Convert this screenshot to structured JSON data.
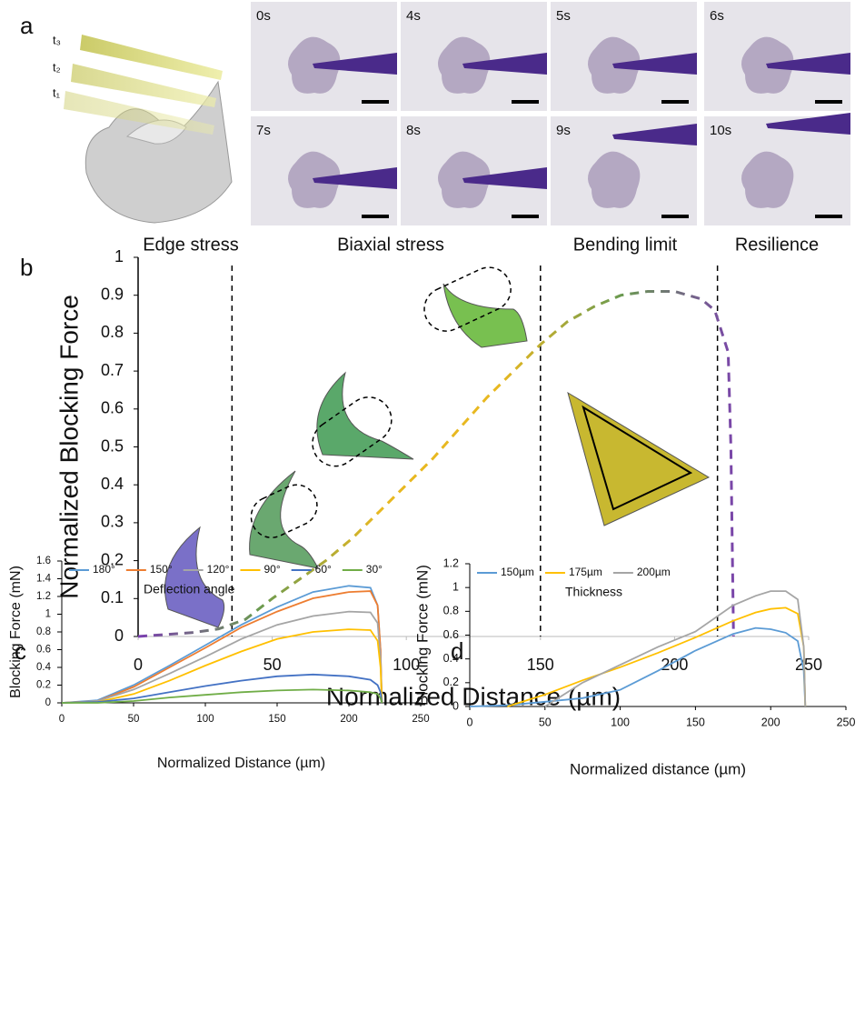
{
  "panels": [
    "a",
    "b",
    "c",
    "d"
  ],
  "panel_a": {
    "tips": [
      "t₃",
      "t₂",
      "t₁"
    ],
    "times": [
      "0s",
      "4s",
      "5s",
      "6s",
      "7s",
      "8s",
      "9s",
      "10s"
    ]
  },
  "chart_data": [
    {
      "type": "line",
      "xlabel": "Normalized Distance (µm)",
      "ylabel": "Normalized Blocking Force",
      "annotations": [
        "Edge stress",
        "Biaxial stress",
        "Bending limit",
        "Resilience"
      ],
      "dividers": [
        35,
        150,
        216
      ],
      "x": [
        0,
        10,
        20,
        30,
        40,
        50,
        60,
        70,
        80,
        90,
        100,
        110,
        120,
        130,
        140,
        150,
        160,
        170,
        180,
        190,
        200,
        210,
        215,
        220,
        221,
        222
      ],
      "values": [
        0,
        0.005,
        0.01,
        0.02,
        0.045,
        0.1,
        0.15,
        0.2,
        0.26,
        0.33,
        0.4,
        0.47,
        0.55,
        0.63,
        0.7,
        0.77,
        0.83,
        0.87,
        0.9,
        0.91,
        0.91,
        0.89,
        0.86,
        0.75,
        0.5,
        0
      ],
      "colors": [
        "#7b3fb0",
        "#6a9a50",
        "#e8b820",
        "#e8b820",
        "#6a9a50",
        "#7b3fb0"
      ],
      "dashed": true,
      "xlim": [
        0,
        250
      ],
      "ylim": [
        0,
        1
      ],
      "xticks": [
        0,
        50,
        100,
        150,
        200,
        250
      ],
      "yticks": [
        0,
        0.1,
        0.2,
        0.3,
        0.4,
        0.5,
        0.6,
        0.7,
        0.8,
        0.9,
        1
      ]
    },
    {
      "type": "line",
      "xlabel": "Normalized Distance (µm)",
      "ylabel": "Blocking Force (mN)",
      "legend": "top-left",
      "legend_title": "Deflection angle",
      "x": [
        0,
        25,
        50,
        75,
        100,
        125,
        150,
        175,
        200,
        215,
        220,
        222,
        223
      ],
      "series": [
        {
          "name": "180°",
          "color": "#5b9bd5",
          "values": [
            0,
            0.03,
            0.2,
            0.42,
            0.65,
            0.88,
            1.08,
            1.25,
            1.32,
            1.3,
            1.1,
            0.6,
            0
          ]
        },
        {
          "name": "150°",
          "color": "#ed7d31",
          "values": [
            0,
            0.02,
            0.18,
            0.4,
            0.62,
            0.85,
            1.03,
            1.18,
            1.25,
            1.26,
            1.1,
            0.6,
            0
          ]
        },
        {
          "name": "120°",
          "color": "#a5a5a5",
          "values": [
            0,
            0.02,
            0.15,
            0.33,
            0.52,
            0.72,
            0.88,
            0.98,
            1.03,
            1.02,
            0.9,
            0.5,
            0
          ]
        },
        {
          "name": "90°",
          "color": "#ffc000",
          "values": [
            0,
            0.01,
            0.1,
            0.25,
            0.42,
            0.58,
            0.72,
            0.8,
            0.83,
            0.82,
            0.7,
            0.4,
            0
          ]
        },
        {
          "name": "60°",
          "color": "#4472c4",
          "values": [
            0,
            0.01,
            0.05,
            0.12,
            0.19,
            0.25,
            0.3,
            0.32,
            0.3,
            0.26,
            0.2,
            0.12,
            0
          ]
        },
        {
          "name": "30°",
          "color": "#70ad47",
          "values": [
            0,
            0,
            0.02,
            0.06,
            0.09,
            0.12,
            0.14,
            0.15,
            0.14,
            0.12,
            0.1,
            0.05,
            0
          ]
        }
      ],
      "xlim": [
        0,
        250
      ],
      "ylim": [
        0,
        1.6
      ],
      "xticks": [
        0,
        50,
        100,
        150,
        200,
        250
      ],
      "yticks": [
        0,
        0.2,
        0.4,
        0.6,
        0.8,
        1,
        1.2,
        1.4,
        1.6
      ]
    },
    {
      "type": "line",
      "xlabel": "Normalized distance (µm)",
      "ylabel": "Blocking Force (mN)",
      "legend": "top-left",
      "legend_title": "Thickness",
      "x": [
        0,
        25,
        50,
        75,
        100,
        125,
        150,
        175,
        190,
        200,
        210,
        218,
        222,
        223
      ],
      "series": [
        {
          "name": "150µm",
          "color": "#5b9bd5",
          "values": [
            0,
            0.01,
            0.04,
            0.07,
            0.14,
            0.3,
            0.47,
            0.61,
            0.66,
            0.65,
            0.62,
            0.55,
            0.3,
            0
          ]
        },
        {
          "name": "175µm",
          "color": "#ffc000",
          "values": [
            null,
            0,
            0.1,
            0.22,
            0.33,
            0.45,
            0.58,
            0.72,
            0.79,
            0.82,
            0.83,
            0.78,
            0.5,
            0
          ]
        },
        {
          "name": "200µm",
          "color": "#a5a5a5",
          "values": [
            null,
            null,
            0,
            0.2,
            0.35,
            0.5,
            0.63,
            0.85,
            0.93,
            0.97,
            0.97,
            0.9,
            0.5,
            0
          ]
        }
      ],
      "xlim": [
        0,
        250
      ],
      "ylim": [
        0,
        1.2
      ],
      "xticks": [
        0,
        50,
        100,
        150,
        200,
        250
      ],
      "yticks": [
        0,
        0.2,
        0.4,
        0.6,
        0.8,
        1,
        1.2
      ]
    }
  ]
}
